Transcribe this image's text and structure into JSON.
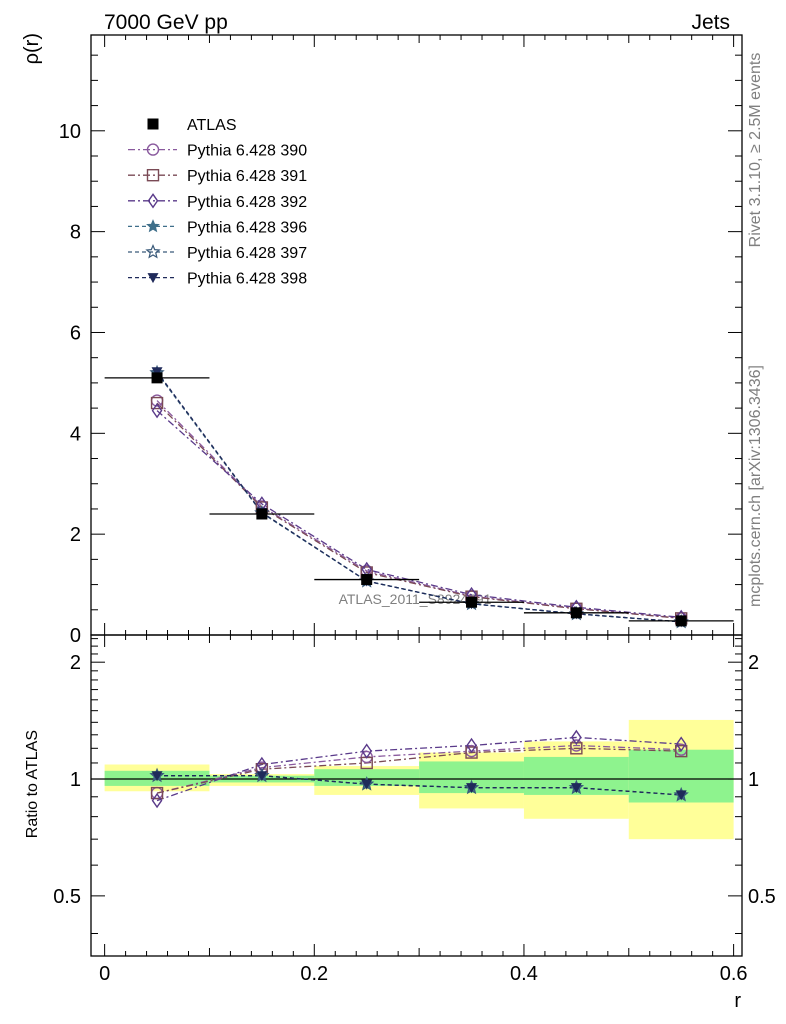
{
  "header": {
    "left_label": "7000 GeV pp",
    "right_label": "Jets"
  },
  "side_texts": {
    "rivet": "Rivet 3.1.10, ≥ 2.5M events",
    "mcplots": "mcplots.cern.ch [arXiv:1306.3436]"
  },
  "watermark": "ATLAS_2011_S8924791",
  "chart_data": {
    "type": "line",
    "xlabel": "r",
    "main_panel": {
      "ylabel": "ρ(r)",
      "ylim": [
        0,
        11.9
      ],
      "yticks": [
        0,
        2,
        4,
        6,
        8,
        10
      ],
      "ytick_labels": [
        "0",
        "2",
        "4",
        "6",
        "8",
        "10"
      ]
    },
    "ratio_panel": {
      "ylabel": "Ratio to ATLAS",
      "ylim": [
        0.35,
        2.35
      ],
      "log_scale": true,
      "yticks": [
        0.5,
        1,
        2
      ],
      "ytick_labels": [
        "0.5",
        "1",
        "2"
      ]
    },
    "xlim": [
      -0.013,
      0.608
    ],
    "xticks": [
      0,
      0.2,
      0.4,
      0.6
    ],
    "xtick_labels": [
      "0",
      "0.2",
      "0.4",
      "0.6"
    ],
    "x": [
      0.05,
      0.15,
      0.25,
      0.35,
      0.45,
      0.55
    ],
    "bin_edges": [
      0,
      0.1,
      0.2,
      0.3,
      0.4,
      0.5,
      0.6
    ],
    "reference": {
      "name": "ATLAS",
      "values": [
        5.1,
        2.4,
        1.1,
        0.65,
        0.44,
        0.28
      ],
      "ratio_band_inner": [
        [
          0.96,
          1.05
        ],
        [
          0.98,
          1.02
        ],
        [
          0.96,
          1.06
        ],
        [
          0.92,
          1.11
        ],
        [
          0.91,
          1.14
        ],
        [
          0.87,
          1.19
        ]
      ],
      "ratio_band_outer": [
        [
          0.93,
          1.09
        ],
        [
          0.96,
          1.03
        ],
        [
          0.91,
          1.08
        ],
        [
          0.84,
          1.17
        ],
        [
          0.79,
          1.25
        ],
        [
          0.7,
          1.42
        ]
      ]
    },
    "series": [
      {
        "name": "Pythia 6.428 390",
        "color": "#8a5a9e",
        "dash": "7,3,2,3",
        "marker": "circle-open",
        "values": [
          4.65,
          2.55,
          1.27,
          0.77,
          0.53,
          0.33
        ],
        "ratio": [
          0.92,
          1.07,
          1.14,
          1.18,
          1.22,
          1.19
        ]
      },
      {
        "name": "Pythia 6.428 391",
        "color": "#7a4a55",
        "dash": "7,3,2,3",
        "marker": "square-open",
        "values": [
          4.6,
          2.53,
          1.24,
          0.76,
          0.52,
          0.33
        ],
        "ratio": [
          0.92,
          1.06,
          1.1,
          1.17,
          1.2,
          1.18
        ]
      },
      {
        "name": "Pythia 6.428 392",
        "color": "#5a3a8a",
        "dash": "7,3,2,3",
        "marker": "diamond-open",
        "values": [
          4.45,
          2.6,
          1.3,
          0.8,
          0.55,
          0.35
        ],
        "ratio": [
          0.88,
          1.09,
          1.18,
          1.22,
          1.28,
          1.23
        ]
      },
      {
        "name": "Pythia 6.428 396",
        "color": "#3f6f8a",
        "dash": "4,3",
        "marker": "star-filled",
        "values": [
          5.2,
          2.42,
          1.07,
          0.62,
          0.42,
          0.26
        ],
        "ratio": [
          1.02,
          1.02,
          0.97,
          0.95,
          0.95,
          0.91
        ]
      },
      {
        "name": "Pythia 6.428 397",
        "color": "#3a5a7a",
        "dash": "4,3",
        "marker": "star-open",
        "values": [
          5.2,
          2.42,
          1.07,
          0.62,
          0.42,
          0.26
        ],
        "ratio": [
          1.02,
          1.02,
          0.97,
          0.95,
          0.95,
          0.91
        ]
      },
      {
        "name": "Pythia 6.428 398",
        "color": "#1f2a5a",
        "dash": "4,3",
        "marker": "triangle-down-filled",
        "values": [
          5.22,
          2.43,
          1.07,
          0.62,
          0.42,
          0.26
        ],
        "ratio": [
          1.02,
          1.02,
          0.97,
          0.95,
          0.95,
          0.91
        ]
      }
    ]
  },
  "colors": {
    "band_inner": "#8ef38e",
    "band_outer": "#ffff99",
    "reference": "#000000",
    "watermark": "#7f7f7f"
  }
}
